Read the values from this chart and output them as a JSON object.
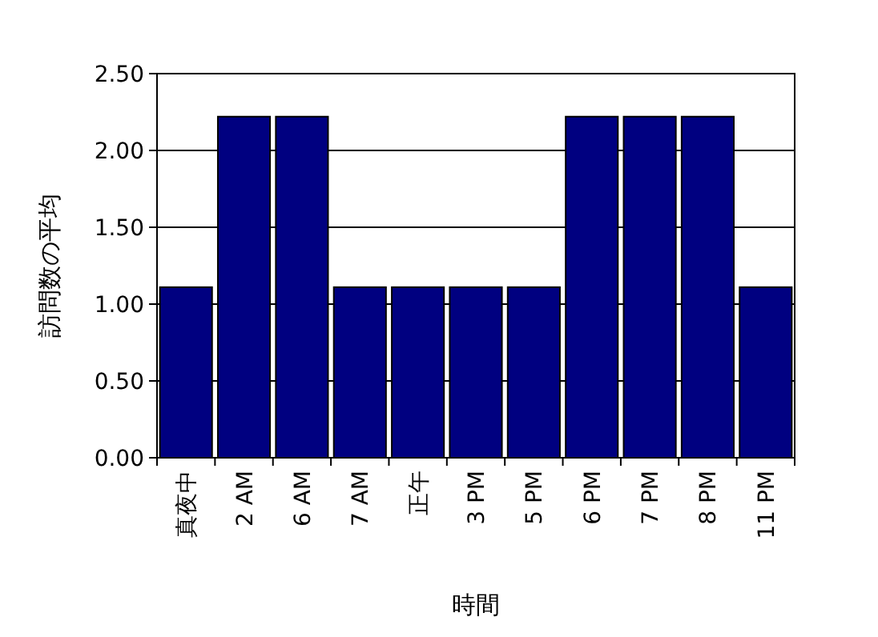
{
  "chart_data": {
    "type": "bar",
    "xlabel": "時間",
    "ylabel": "訪問数の平均",
    "categories": [
      "真夜中",
      "2 AM",
      "6 AM",
      "7 AM",
      "正午",
      "3 PM",
      "5 PM",
      "6 PM",
      "7 PM",
      "8 PM",
      "11 PM"
    ],
    "values": [
      1.11,
      2.22,
      2.22,
      1.11,
      1.11,
      1.11,
      1.11,
      2.22,
      2.22,
      2.22,
      1.11
    ],
    "color": "#000080",
    "ylim": [
      0,
      2.5
    ],
    "yticks": [
      {
        "value": 0,
        "label": "0.00"
      },
      {
        "value": 0.5,
        "label": "0.50"
      },
      {
        "value": 1,
        "label": "1.00"
      },
      {
        "value": 1.5,
        "label": "1.50"
      },
      {
        "value": 2,
        "label": "2.00"
      },
      {
        "value": 2.5,
        "label": "2.50"
      }
    ],
    "grid": "y"
  }
}
